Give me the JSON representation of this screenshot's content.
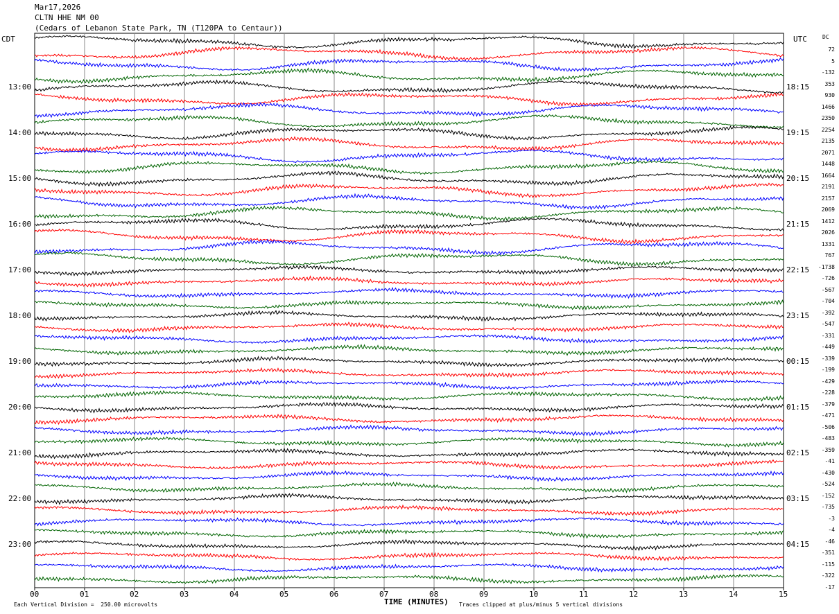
{
  "header": {
    "date": "Mar17,2026",
    "station": "CLTN HHE NM 00",
    "location": "(Cedars of Lebanon State Park, TN (T120PA to Centaur))"
  },
  "chart_data": {
    "type": "line",
    "title": "CLTN HHE NM 00",
    "left_tz": "CDT",
    "right_tz": "UTC",
    "dc_label": "DC",
    "left_ticks": [
      "13:00",
      "14:00",
      "15:00",
      "16:00",
      "17:00",
      "18:00",
      "19:00",
      "20:00",
      "21:00",
      "22:00",
      "23:00"
    ],
    "right_ticks": [
      "18:15",
      "19:15",
      "20:15",
      "21:15",
      "22:15",
      "23:15",
      "00:15",
      "01:15",
      "02:15",
      "03:15",
      "04:15"
    ],
    "x_ticks": [
      "00",
      "01",
      "02",
      "03",
      "04",
      "05",
      "06",
      "07",
      "08",
      "09",
      "10",
      "11",
      "12",
      "13",
      "14",
      "15"
    ],
    "xlabel": "TIME (MINUTES)",
    "xlim": [
      0,
      15
    ],
    "trace_count": 48,
    "trace_minutes": 15,
    "dc_offsets": [
      72,
      5,
      -132,
      353,
      930,
      1466,
      2350,
      2254,
      2135,
      2071,
      1448,
      1664,
      2191,
      2157,
      2069,
      1412,
      2026,
      1331,
      767,
      -1738,
      -726,
      -567,
      -704,
      -392,
      -547,
      -331,
      -449,
      -339,
      -199,
      -429,
      -228,
      -379,
      -471,
      -506,
      -483,
      -359,
      -41,
      -430,
      -524,
      -152,
      -735,
      -3,
      -4,
      -46,
      -351,
      -115,
      -322,
      -17
    ],
    "trace_colors": [
      "#000000",
      "#ff0000",
      "#0000ff",
      "#006400"
    ],
    "scale_note": "Each Vertical Division =  250.00 microvolts",
    "clip_note": "Traces clipped at plus/minus 5 vertical divisions"
  }
}
